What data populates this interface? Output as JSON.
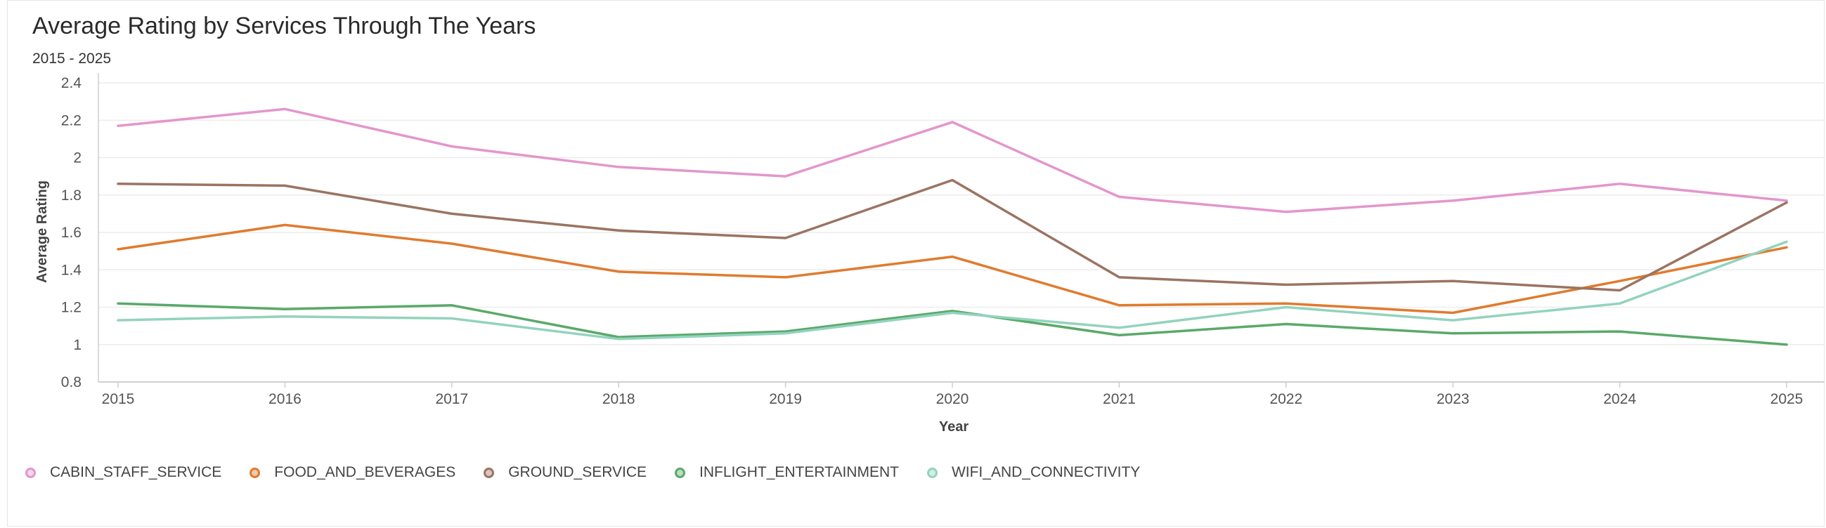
{
  "chart_data": {
    "type": "line",
    "title": "Average Rating by Services Through The Years",
    "subtitle": "2015 - 2025",
    "xlabel": "Year",
    "ylabel": "Average Rating",
    "x": [
      "2015",
      "2016",
      "2017",
      "2018",
      "2019",
      "2020",
      "2021",
      "2022",
      "2023",
      "2024",
      "2025"
    ],
    "ylim": [
      0.8,
      2.4
    ],
    "yticks": [
      0.8,
      1,
      1.2,
      1.4,
      1.6,
      1.8,
      2,
      2.2,
      2.4
    ],
    "ytick_labels": [
      "0.8",
      "1",
      "1.2",
      "1.4",
      "1.6",
      "1.8",
      "2",
      "2.2",
      "2.4"
    ],
    "grid": true,
    "legend_position": "bottom-left",
    "series": [
      {
        "name": "CABIN_STAFF_SERVICE",
        "color": "#e396cc",
        "values": [
          2.17,
          2.26,
          2.06,
          1.95,
          1.9,
          2.19,
          1.79,
          1.71,
          1.77,
          1.86,
          1.77
        ]
      },
      {
        "name": "FOOD_AND_BEVERAGES",
        "color": "#e07b2e",
        "values": [
          1.51,
          1.64,
          1.54,
          1.39,
          1.36,
          1.47,
          1.21,
          1.22,
          1.17,
          1.34,
          1.52
        ]
      },
      {
        "name": "GROUND_SERVICE",
        "color": "#9a7462",
        "values": [
          1.86,
          1.85,
          1.7,
          1.61,
          1.57,
          1.88,
          1.36,
          1.32,
          1.34,
          1.29,
          1.76
        ]
      },
      {
        "name": "INFLIGHT_ENTERTAINMENT",
        "color": "#5aa96a",
        "values": [
          1.22,
          1.19,
          1.21,
          1.04,
          1.07,
          1.18,
          1.05,
          1.11,
          1.06,
          1.07,
          1.0
        ]
      },
      {
        "name": "WIFI_AND_CONNECTIVITY",
        "color": "#93d3be",
        "values": [
          1.13,
          1.15,
          1.14,
          1.03,
          1.06,
          1.17,
          1.09,
          1.2,
          1.13,
          1.22,
          1.55
        ]
      }
    ]
  }
}
